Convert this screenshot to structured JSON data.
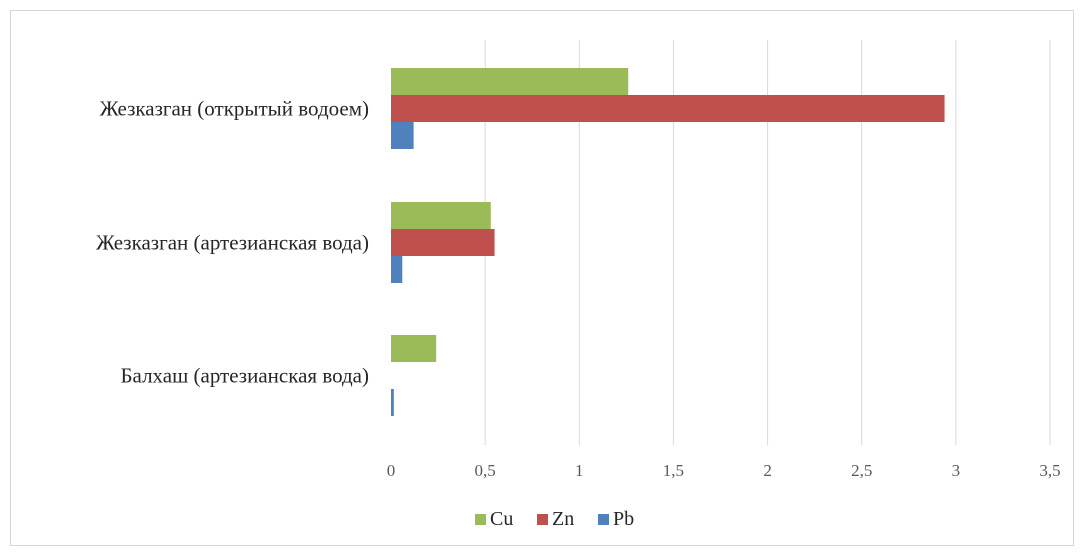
{
  "chart_data": {
    "type": "bar",
    "orientation": "horizontal",
    "categories": [
      "Жезказган (открытый водоем)",
      "Жезказган (артезианская вода)",
      "Балхаш (артезианская вода)"
    ],
    "series": [
      {
        "name": "Cu",
        "color": "#9bbb59",
        "values": [
          1.26,
          0.53,
          0.24
        ]
      },
      {
        "name": "Zn",
        "color": "#c0504d",
        "values": [
          2.94,
          0.55,
          0.0
        ]
      },
      {
        "name": "Pb",
        "color": "#4f81bd",
        "values": [
          0.12,
          0.06,
          0.015
        ]
      }
    ],
    "x_ticks": [
      "0",
      "0,5",
      "1",
      "1,5",
      "2",
      "2,5",
      "3",
      "3,5"
    ],
    "xlim": [
      0,
      3.5
    ],
    "grid": "vertical",
    "legend_position": "bottom"
  }
}
